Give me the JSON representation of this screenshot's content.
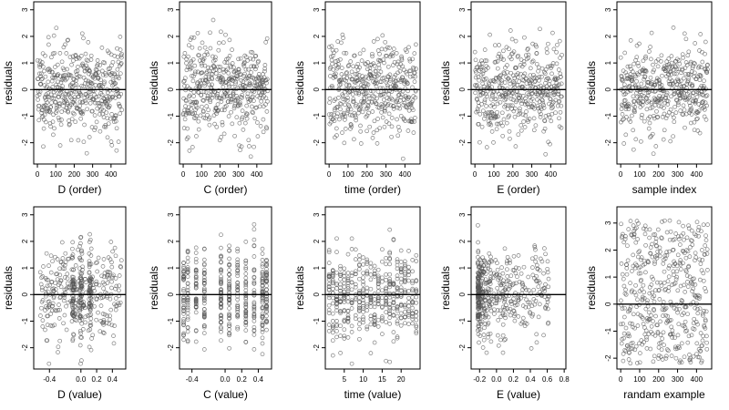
{
  "chart_data": [
    {
      "type": "scatter",
      "xlabel": "D (order)",
      "ylabel": "residuals",
      "xlim": [
        -20,
        480
      ],
      "ylim": [
        -2.8,
        3.3
      ],
      "xticks": [
        0,
        100,
        200,
        300,
        400
      ],
      "xtick_labels": [
        "0",
        "100",
        "200",
        "300",
        "400"
      ],
      "yticks": [
        -2,
        -1,
        0,
        1,
        2,
        3
      ],
      "ytick_labels": [
        "-2",
        "-1",
        "0",
        "1",
        "2",
        "3"
      ],
      "reference_line_y": 0,
      "x_kind": "index",
      "n_points": 460,
      "noise_seed": 11
    },
    {
      "type": "scatter",
      "xlabel": "C (order)",
      "ylabel": "residuals",
      "xlim": [
        -20,
        480
      ],
      "ylim": [
        -2.8,
        3.3
      ],
      "xticks": [
        0,
        100,
        200,
        300,
        400
      ],
      "xtick_labels": [
        "0",
        "100",
        "200",
        "300",
        "400"
      ],
      "yticks": [
        -2,
        -1,
        0,
        1,
        2,
        3
      ],
      "ytick_labels": [
        "-2",
        "-1",
        "0",
        "1",
        "2",
        "3"
      ],
      "reference_line_y": 0,
      "x_kind": "index",
      "n_points": 460,
      "noise_seed": 23
    },
    {
      "type": "scatter",
      "xlabel": "time (order)",
      "ylabel": "residuals",
      "xlim": [
        -20,
        480
      ],
      "ylim": [
        -2.8,
        3.3
      ],
      "xticks": [
        0,
        100,
        200,
        300,
        400
      ],
      "xtick_labels": [
        "0",
        "100",
        "200",
        "300",
        "400"
      ],
      "yticks": [
        -2,
        -1,
        0,
        1,
        2,
        3
      ],
      "ytick_labels": [
        "-2",
        "-1",
        "0",
        "1",
        "2",
        "3"
      ],
      "reference_line_y": 0,
      "x_kind": "index",
      "n_points": 460,
      "noise_seed": 37
    },
    {
      "type": "scatter",
      "xlabel": "E (order)",
      "ylabel": "residuals",
      "xlim": [
        -20,
        480
      ],
      "ylim": [
        -2.8,
        3.3
      ],
      "xticks": [
        0,
        100,
        200,
        300,
        400
      ],
      "xtick_labels": [
        "0",
        "100",
        "200",
        "300",
        "400"
      ],
      "yticks": [
        -2,
        -1,
        0,
        1,
        2,
        3
      ],
      "ytick_labels": [
        "-2",
        "-1",
        "0",
        "1",
        "2",
        "3"
      ],
      "reference_line_y": 0,
      "x_kind": "index",
      "n_points": 460,
      "noise_seed": 41
    },
    {
      "type": "scatter",
      "xlabel": "sample index",
      "ylabel": "residuals",
      "xlim": [
        -20,
        480
      ],
      "ylim": [
        -2.8,
        3.3
      ],
      "xticks": [
        0,
        100,
        200,
        300,
        400
      ],
      "xtick_labels": [
        "0",
        "100",
        "200",
        "300",
        "400"
      ],
      "yticks": [
        -2,
        -1,
        0,
        1,
        2,
        3
      ],
      "ytick_labels": [
        "-2",
        "-1",
        "0",
        "1",
        "2",
        "3"
      ],
      "reference_line_y": 0,
      "x_kind": "index",
      "n_points": 460,
      "noise_seed": 53
    },
    {
      "type": "scatter",
      "xlabel": "D (value)",
      "ylabel": "residuals",
      "xlim": [
        -0.6,
        0.57
      ],
      "ylim": [
        -2.8,
        3.3
      ],
      "xticks": [
        -0.4,
        0.0,
        0.2,
        0.4
      ],
      "xtick_labels": [
        "-0.4",
        "0.0",
        "0.2",
        "0.4"
      ],
      "yticks": [
        -2,
        -1,
        0,
        1,
        2,
        3
      ],
      "ytick_labels": [
        "-2",
        "-1",
        "0",
        "1",
        "2",
        "3"
      ],
      "reference_line_y": 0,
      "x_kind": "continuous",
      "x_range": [
        -0.52,
        0.52
      ],
      "x_clusters": [
        -0.1,
        0.0,
        0.12
      ],
      "n_points": 460,
      "noise_seed": 67
    },
    {
      "type": "scatter",
      "xlabel": "C (value)",
      "ylabel": "residuals",
      "xlim": [
        -0.55,
        0.56
      ],
      "ylim": [
        -2.8,
        3.3
      ],
      "xticks": [
        -0.4,
        0.0,
        0.2,
        0.4
      ],
      "xtick_labels": [
        "-0.4",
        "0.0",
        "0.2",
        "0.4"
      ],
      "yticks": [
        -2,
        -1,
        0,
        1,
        2,
        3
      ],
      "ytick_labels": [
        "-2",
        "-1",
        "0",
        "1",
        "2",
        "3"
      ],
      "reference_line_y": 0,
      "x_kind": "discrete",
      "x_levels": [
        -0.5,
        -0.45,
        -0.35,
        -0.25,
        -0.05,
        0.05,
        0.15,
        0.25,
        0.35,
        0.45,
        0.5
      ],
      "n_points": 460,
      "noise_seed": 79
    },
    {
      "type": "scatter",
      "xlabel": "time (value)",
      "ylabel": "residuals",
      "xlim": [
        0,
        25
      ],
      "ylim": [
        -2.8,
        3.3
      ],
      "xticks": [
        5,
        10,
        15,
        20
      ],
      "xtick_labels": [
        "5",
        "10",
        "15",
        "20"
      ],
      "yticks": [
        -2,
        -1,
        0,
        1,
        2,
        3
      ],
      "ytick_labels": [
        "-2",
        "-1",
        "0",
        "1",
        "2",
        "3"
      ],
      "reference_line_y": 0,
      "x_kind": "discrete",
      "x_levels": [
        1,
        2,
        3,
        4,
        5,
        6,
        7,
        8,
        9,
        10,
        11,
        12,
        13,
        14,
        15,
        16,
        17,
        18,
        19,
        20,
        21,
        22,
        23,
        24
      ],
      "n_points": 460,
      "noise_seed": 83
    },
    {
      "type": "scatter",
      "xlabel": "E (value)",
      "ylabel": "residuals",
      "xlim": [
        -0.3,
        0.82
      ],
      "ylim": [
        -2.8,
        3.3
      ],
      "xticks": [
        -0.2,
        0.0,
        0.2,
        0.4,
        0.6,
        0.8
      ],
      "xtick_labels": [
        "-0.2",
        "0.0",
        "0.2",
        "0.4",
        "0.6",
        "0.8"
      ],
      "yticks": [
        -2,
        -1,
        0,
        1,
        2,
        3
      ],
      "ytick_labels": [
        "-2",
        "-1",
        "0",
        "1",
        "2",
        "3"
      ],
      "reference_line_y": 0,
      "x_kind": "skewed",
      "x_range": [
        -0.22,
        0.62
      ],
      "n_points": 460,
      "noise_seed": 97
    },
    {
      "type": "scatter",
      "xlabel": "randam example",
      "ylabel": "residuals",
      "xlim": [
        -20,
        480
      ],
      "ylim": [
        -2.4,
        3.6
      ],
      "xticks": [
        0,
        100,
        200,
        300,
        400
      ],
      "xtick_labels": [
        "0",
        "100",
        "200",
        "300",
        "400"
      ],
      "yticks": [
        -2,
        -1,
        0,
        1,
        2,
        3
      ],
      "ytick_labels": [
        "-2",
        "-1",
        "0",
        "1",
        "2",
        "3"
      ],
      "reference_line_y": 0,
      "x_kind": "index",
      "y_kind": "uniform",
      "y_range": [
        -2.2,
        3.1
      ],
      "n_points": 460,
      "noise_seed": 101
    }
  ]
}
